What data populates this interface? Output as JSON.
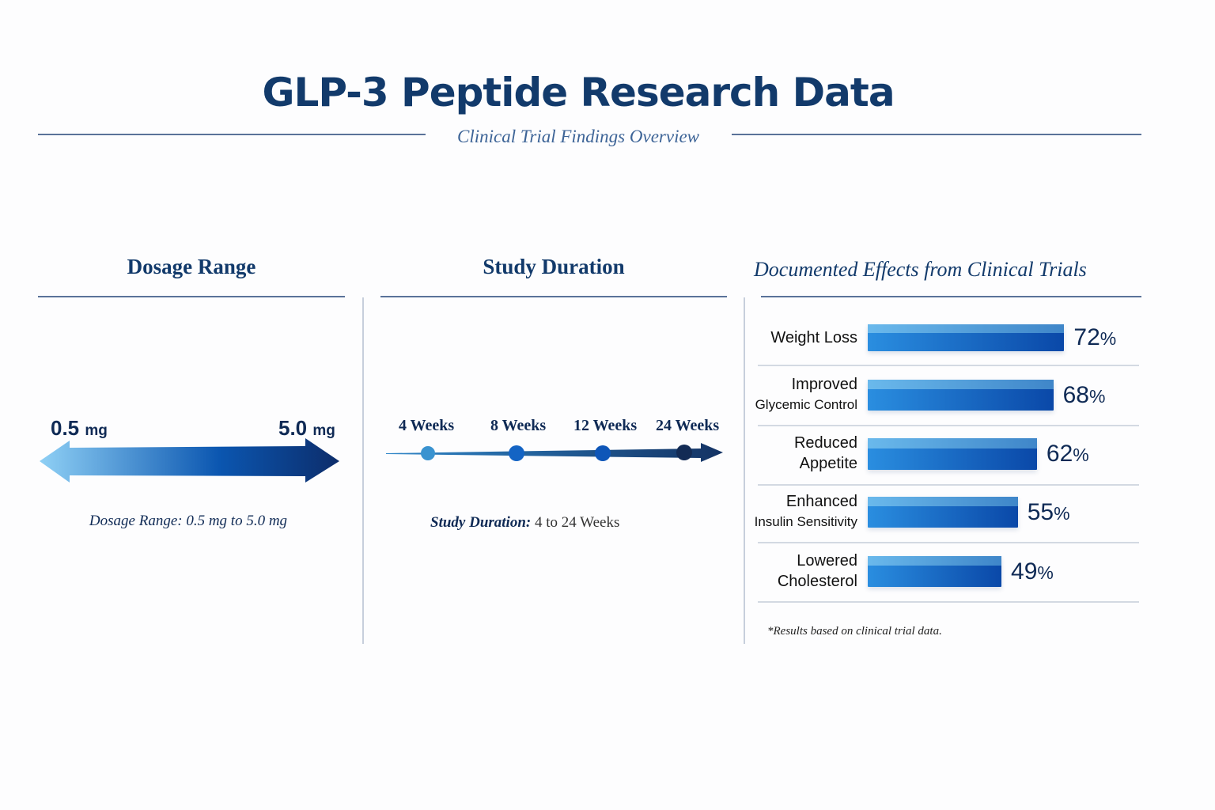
{
  "header": {
    "title": "GLP-3 Peptide Research Data",
    "subtitle": "Clinical Trial Findings Overview"
  },
  "dosage": {
    "heading": "Dosage Range",
    "min_value": "0.5",
    "min_unit": "mg",
    "max_value": "5.0",
    "max_unit": "mg",
    "caption": "Dosage Range: 0.5 mg to 5.0 mg"
  },
  "duration": {
    "heading": "Study Duration",
    "milestones": [
      "4 Weeks",
      "8 Weeks",
      "12 Weeks",
      "24 Weeks"
    ],
    "caption_label": "Study Duration:",
    "caption_value": "4 to 24 Weeks"
  },
  "effects": {
    "heading": "Documented Effects from Clinical Trials",
    "footnote": "*Results based on clinical trial data."
  },
  "chart_data": {
    "type": "bar",
    "orientation": "horizontal",
    "title": "Documented Effects from Clinical Trials",
    "categories": [
      {
        "line1": "Weight Loss",
        "line2": ""
      },
      {
        "line1": "Improved",
        "line2": "Glycemic Control"
      },
      {
        "line1": "Reduced",
        "line2": "Appetite"
      },
      {
        "line1": "Enhanced",
        "line2": "Insulin Sensitivity"
      },
      {
        "line1": "Lowered",
        "line2": "Cholesterol"
      }
    ],
    "values": [
      72,
      68,
      62,
      55,
      49
    ],
    "labels": [
      "72",
      "68",
      "62",
      "55",
      "49"
    ],
    "unit": "%",
    "colors": {
      "bar_start": "#2a8ee0",
      "bar_end": "#0a48a8"
    }
  }
}
